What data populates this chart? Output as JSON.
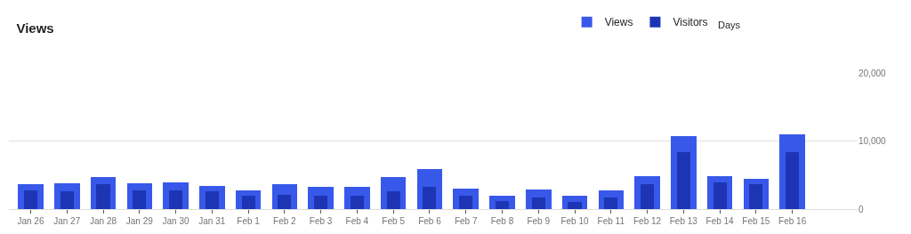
{
  "chart_data": {
    "type": "bar",
    "title": "Views",
    "categories": [
      "Jan 26",
      "Jan 27",
      "Jan 28",
      "Jan 29",
      "Jan 30",
      "Jan 31",
      "Feb 1",
      "Feb 2",
      "Feb 3",
      "Feb 4",
      "Feb 5",
      "Feb 6",
      "Feb 7",
      "Feb 8",
      "Feb 9",
      "Feb 10",
      "Feb 11",
      "Feb 12",
      "Feb 13",
      "Feb 14",
      "Feb 15",
      "Feb 16"
    ],
    "series": [
      {
        "name": "Views",
        "color": "#3858e9",
        "values": [
          3700,
          3800,
          4700,
          3850,
          3900,
          3400,
          2800,
          3600,
          3300,
          3300,
          4700,
          5900,
          3000,
          2000,
          2900,
          1900,
          2700,
          4900,
          10700,
          4800,
          4500,
          11000
        ]
      },
      {
        "name": "Visitors",
        "color": "#1d35b4",
        "values": [
          2700,
          2600,
          3600,
          2700,
          2700,
          2600,
          2000,
          2100,
          2000,
          2000,
          2600,
          3300,
          2000,
          1200,
          1700,
          1000,
          1700,
          3700,
          8400,
          3900,
          3600,
          8400
        ]
      }
    ],
    "ylim": [
      0,
      20000
    ],
    "yticks": [
      {
        "value": 0,
        "label": "0"
      },
      {
        "value": 10000,
        "label": "10,000"
      },
      {
        "value": 20000,
        "label": "20,000"
      }
    ],
    "grid": "y",
    "legend": "top right",
    "annotations": [
      "Days"
    ]
  }
}
